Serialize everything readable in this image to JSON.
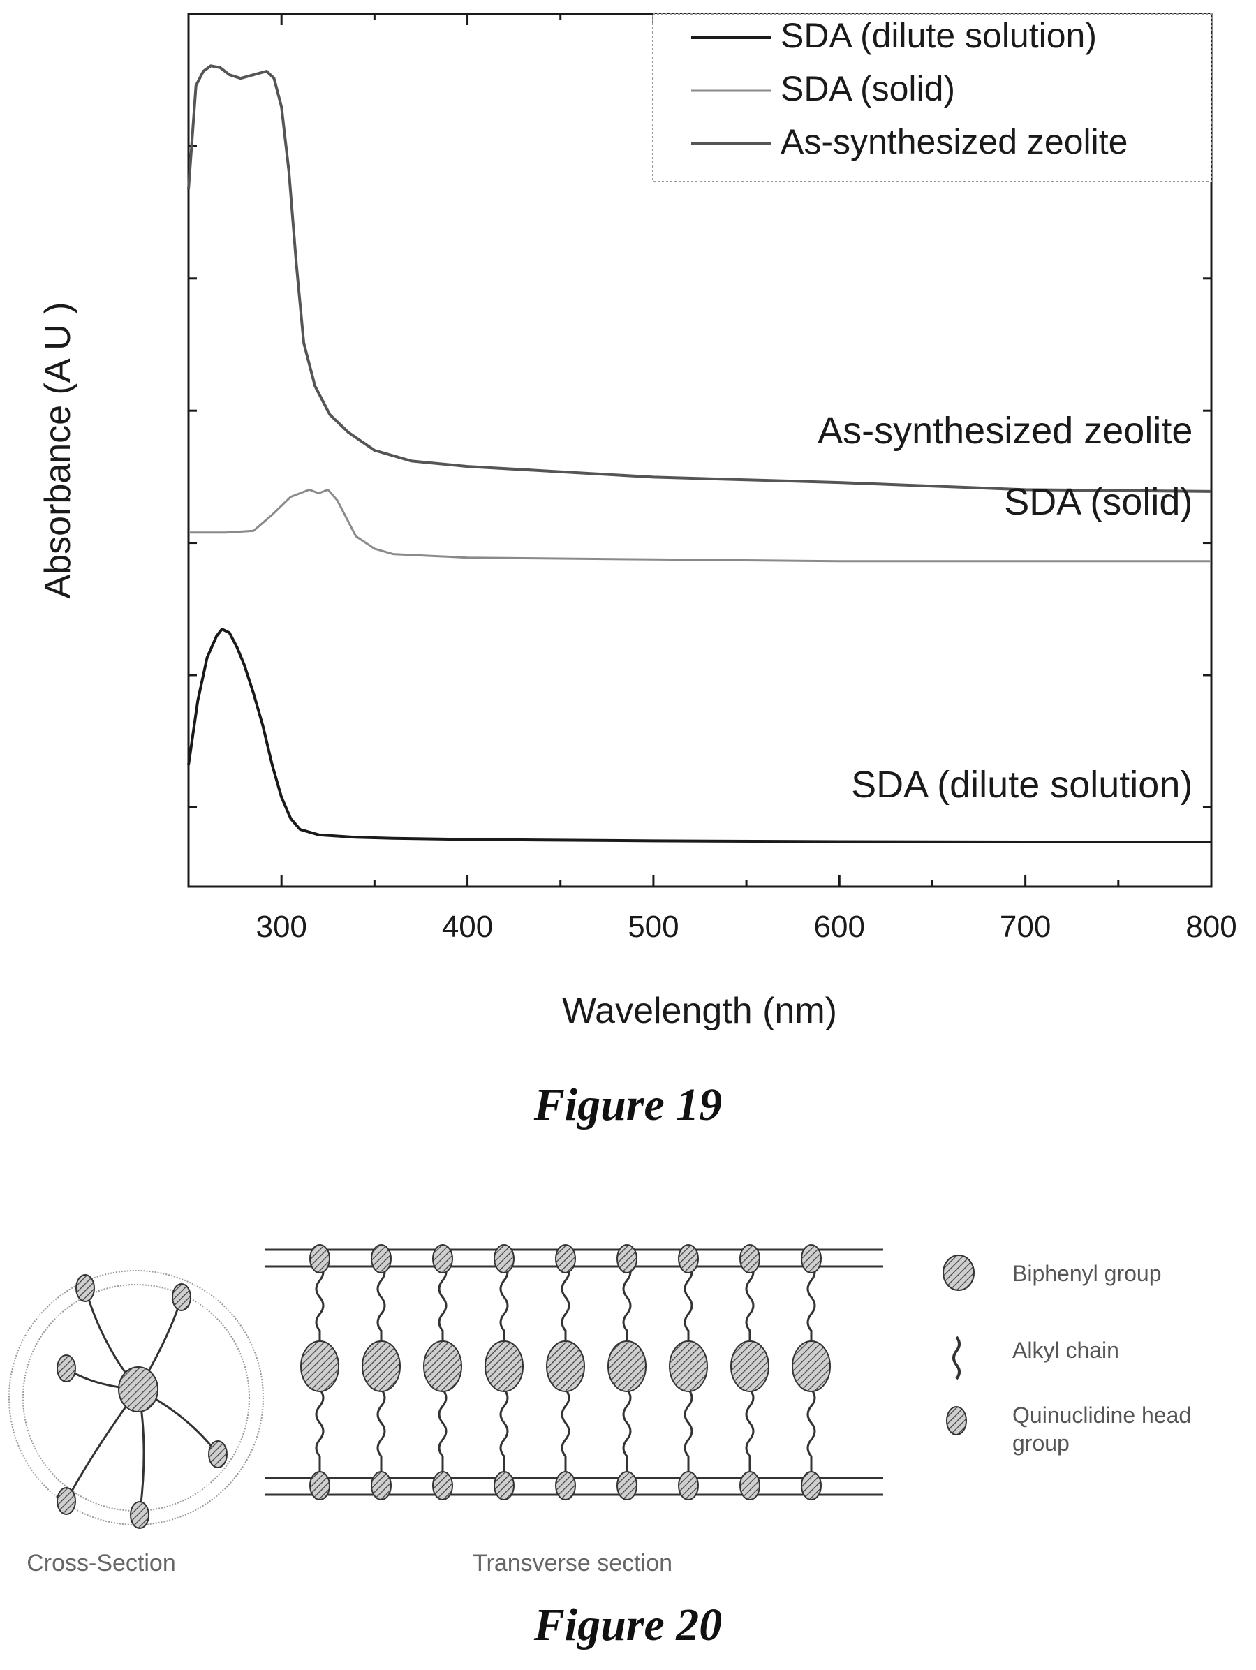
{
  "figure19": {
    "caption": "Figure 19",
    "chart_data": {
      "type": "line",
      "xlabel": "Wavelength (nm)",
      "ylabel": "Absorbance (A U )",
      "xlim": [
        250,
        800
      ],
      "xticks": [
        300,
        400,
        500,
        600,
        700,
        800
      ],
      "yticks_labeled": false,
      "grid": false,
      "legend_position": "top-right",
      "legend": [
        "SDA (dilute solution)",
        "SDA (solid)",
        "As-synthesized zeolite"
      ],
      "series": [
        {
          "name": "SDA (dilute solution)",
          "label": "SDA (dilute solution)",
          "color": "#1a1a1a",
          "x": [
            250,
            255,
            260,
            265,
            268,
            272,
            276,
            280,
            285,
            290,
            295,
            300,
            305,
            310,
            320,
            340,
            360,
            400,
            500,
            600,
            700,
            800
          ],
          "y": [
            0.22,
            0.4,
            0.52,
            0.58,
            0.6,
            0.59,
            0.55,
            0.5,
            0.42,
            0.33,
            0.22,
            0.13,
            0.07,
            0.04,
            0.025,
            0.018,
            0.015,
            0.012,
            0.008,
            0.006,
            0.005,
            0.005
          ]
        },
        {
          "name": "SDA (solid)",
          "label": "SDA (solid)",
          "color": "#8a8a8a",
          "x": [
            250,
            270,
            285,
            295,
            305,
            315,
            320,
            325,
            330,
            335,
            340,
            350,
            360,
            400,
            500,
            600,
            700,
            800
          ],
          "y": [
            0.87,
            0.87,
            0.875,
            0.92,
            0.97,
            0.99,
            0.98,
            0.99,
            0.96,
            0.91,
            0.86,
            0.825,
            0.81,
            0.8,
            0.795,
            0.79,
            0.79,
            0.79
          ]
        },
        {
          "name": "As-synthesized zeolite",
          "label": "As-synthesized zeolite",
          "color": "#555555",
          "x": [
            250,
            254,
            258,
            262,
            267,
            272,
            278,
            285,
            292,
            296,
            300,
            304,
            308,
            312,
            318,
            326,
            336,
            350,
            370,
            400,
            450,
            500,
            600,
            700,
            800
          ],
          "y": [
            1.83,
            2.12,
            2.16,
            2.175,
            2.17,
            2.15,
            2.14,
            2.15,
            2.16,
            2.14,
            2.06,
            1.88,
            1.62,
            1.4,
            1.28,
            1.2,
            1.15,
            1.1,
            1.07,
            1.055,
            1.04,
            1.025,
            1.01,
            0.99,
            0.985
          ]
        }
      ]
    }
  },
  "figure20": {
    "caption": "Figure 20",
    "cross_section_label": "Cross-Section",
    "transverse_section_label": "Transverse section",
    "legend": [
      {
        "label": "Biphenyl group",
        "icon": "large-ellipse-icon"
      },
      {
        "label": "Alkyl chain",
        "icon": "wavy-chain-icon"
      },
      {
        "label": "Quinuclidine head group",
        "icon": "small-ellipse-icon"
      }
    ],
    "transverse_units": 9,
    "radial_arms": 6
  }
}
